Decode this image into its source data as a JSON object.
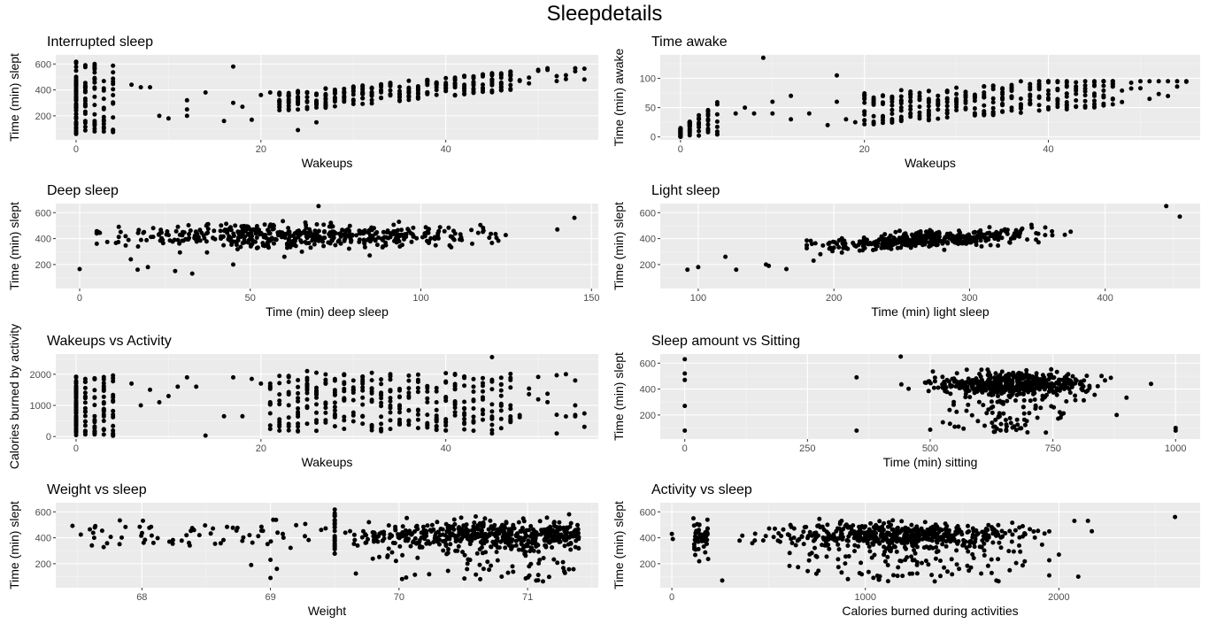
{
  "title": "Sleepdetails",
  "colors": {
    "panel": "#ebebeb",
    "grid_major": "#ffffff",
    "grid_minor": "#f5f5f5",
    "point": "#000000",
    "tick_text": "#4d4d4d"
  },
  "chart_data": [
    {
      "type": "scatter",
      "title": "Interrupted sleep",
      "xlabel": "Wakeups",
      "ylabel": "Time (min) slept",
      "xlim": [
        -2.2,
        56.5
      ],
      "ylim": [
        15,
        670
      ],
      "xticks": [
        0,
        20,
        40
      ],
      "yticks": [
        200,
        400,
        600
      ],
      "gen": {
        "seed": 11,
        "kind": "wakeups_slept"
      }
    },
    {
      "type": "scatter",
      "title": "Time awake",
      "xlabel": "Wakeups",
      "ylabel": "Time (min) awake",
      "xlim": [
        -2.2,
        56.5
      ],
      "ylim": [
        -5,
        140
      ],
      "xticks": [
        0,
        20,
        40
      ],
      "yticks": [
        0,
        50,
        100
      ],
      "gen": {
        "seed": 23,
        "kind": "wakeups_awake"
      }
    },
    {
      "type": "scatter",
      "title": "Deep sleep",
      "xlabel": "Time (min) deep sleep",
      "ylabel": "Time (min) slept",
      "xlim": [
        -7,
        152
      ],
      "ylim": [
        15,
        670
      ],
      "xticks": [
        0,
        50,
        100,
        150
      ],
      "yticks": [
        200,
        400,
        600
      ],
      "gen": {
        "seed": 37,
        "kind": "deep"
      }
    },
    {
      "type": "scatter",
      "title": "Light sleep",
      "xlabel": "Time (min) light sleep",
      "ylabel": "Time (min) slept",
      "xlim": [
        72,
        470
      ],
      "ylim": [
        15,
        670
      ],
      "xticks": [
        100,
        200,
        300,
        400
      ],
      "yticks": [
        200,
        400,
        600
      ],
      "gen": {
        "seed": 41,
        "kind": "light"
      }
    },
    {
      "type": "scatter",
      "title": "Wakeups vs Activity",
      "xlabel": "Wakeups",
      "ylabel": "Calories burned by activity",
      "xlim": [
        -2.2,
        56.5
      ],
      "ylim": [
        -80,
        2650
      ],
      "xticks": [
        0,
        20,
        40
      ],
      "yticks": [
        0,
        1000,
        2000
      ],
      "gen": {
        "seed": 53,
        "kind": "wakeups_calories"
      }
    },
    {
      "type": "scatter",
      "title": "Sleep amount vs Sitting",
      "xlabel": "Time (min) sitting",
      "ylabel": "Time (min) slept",
      "xlim": [
        -50,
        1050
      ],
      "ylim": [
        15,
        670
      ],
      "xticks": [
        0,
        250,
        500,
        750,
        1000
      ],
      "yticks": [
        200,
        400,
        600
      ],
      "gen": {
        "seed": 67,
        "kind": "sitting"
      }
    },
    {
      "type": "scatter",
      "title": "Weight vs sleep",
      "xlabel": "Weight",
      "ylabel": "Time (min) slept",
      "xlim": [
        67.33,
        71.55
      ],
      "ylim": [
        15,
        670
      ],
      "xticks": [
        68,
        69,
        70,
        71
      ],
      "yticks": [
        200,
        400,
        600
      ],
      "gen": {
        "seed": 79,
        "kind": "weight"
      }
    },
    {
      "type": "scatter",
      "title": "Activity vs sleep",
      "xlabel": "Calories burned during activities",
      "ylabel": "Time (min) slept",
      "xlim": [
        -60,
        2730
      ],
      "ylim": [
        15,
        670
      ],
      "xticks": [
        0,
        1000,
        2000
      ],
      "yticks": [
        200,
        400,
        600
      ],
      "gen": {
        "seed": 97,
        "kind": "activity"
      }
    }
  ]
}
